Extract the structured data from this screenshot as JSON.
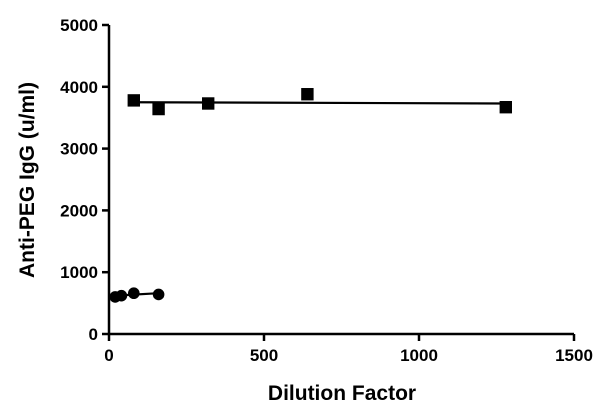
{
  "chart_data": {
    "type": "scatter",
    "title": "",
    "xlabel": "Dilution Factor",
    "ylabel": "Anti-PEG IgG (u/ml)",
    "xlim": [
      0,
      1500
    ],
    "ylim": [
      0,
      5000
    ],
    "xticks": [
      0,
      500,
      1000,
      1500
    ],
    "yticks": [
      0,
      1000,
      2000,
      3000,
      4000,
      5000
    ],
    "grid": false,
    "legend": "none",
    "series": [
      {
        "marker": "circle",
        "color": "#000000",
        "points": [
          {
            "x": 20,
            "y": 600
          },
          {
            "x": 40,
            "y": 620
          },
          {
            "x": 80,
            "y": 660
          },
          {
            "x": 160,
            "y": 640
          }
        ],
        "fit": {
          "x": [
            20,
            160
          ],
          "y": [
            620,
            660
          ]
        }
      },
      {
        "marker": "square",
        "color": "#000000",
        "points": [
          {
            "x": 80,
            "y": 3780
          },
          {
            "x": 160,
            "y": 3640
          },
          {
            "x": 320,
            "y": 3730
          },
          {
            "x": 640,
            "y": 3880
          },
          {
            "x": 1280,
            "y": 3670
          }
        ],
        "fit": {
          "x": [
            80,
            1280
          ],
          "y": [
            3750,
            3730
          ]
        }
      }
    ]
  }
}
